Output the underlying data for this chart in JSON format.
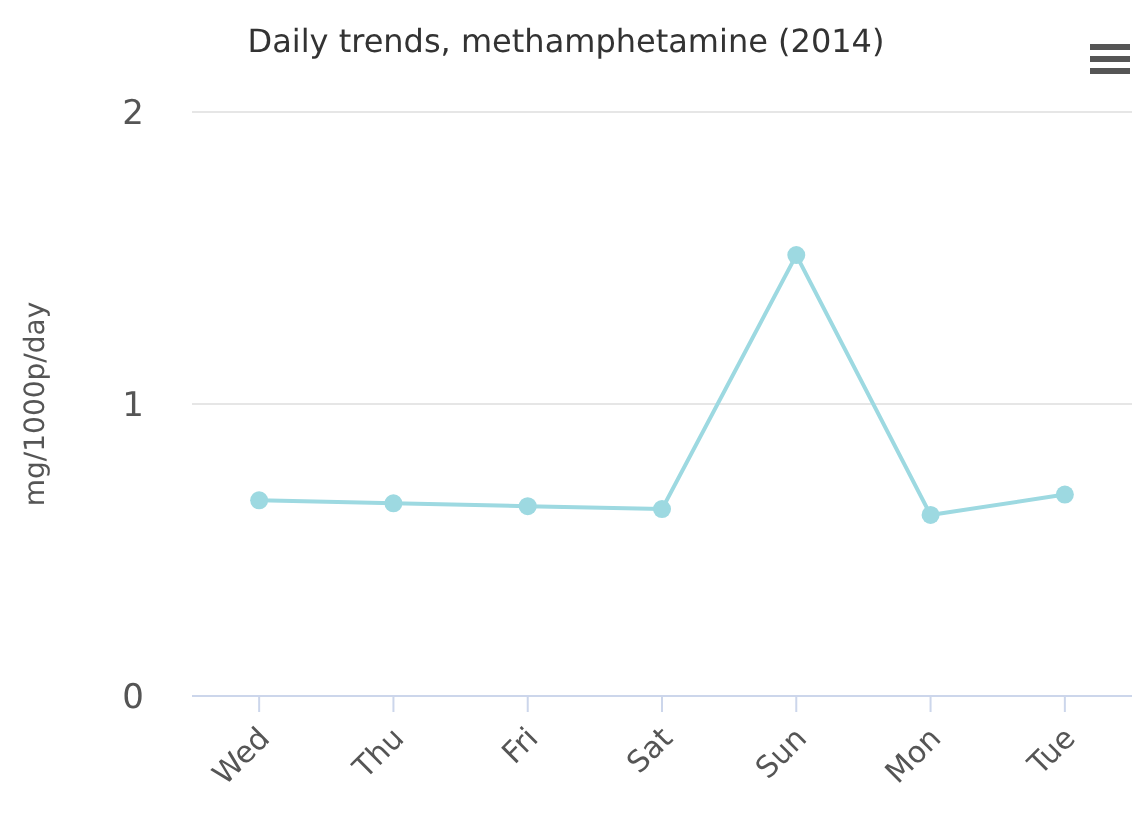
{
  "chart_data": {
    "type": "line",
    "title": "Daily trends, methamphetamine (2014)",
    "ylabel": "mg/1000p/day",
    "categories": [
      "Wed",
      "Thu",
      "Fri",
      "Sat",
      "Sun",
      "Mon",
      "Tue"
    ],
    "series": [
      {
        "color": "#9dd9e1",
        "values": [
          0.67,
          0.66,
          0.65,
          0.64,
          1.51,
          0.62,
          0.69
        ]
      }
    ],
    "ylim": [
      0,
      2
    ],
    "yticks": [
      0,
      1,
      2
    ],
    "grid": "y",
    "marker": "circle"
  }
}
